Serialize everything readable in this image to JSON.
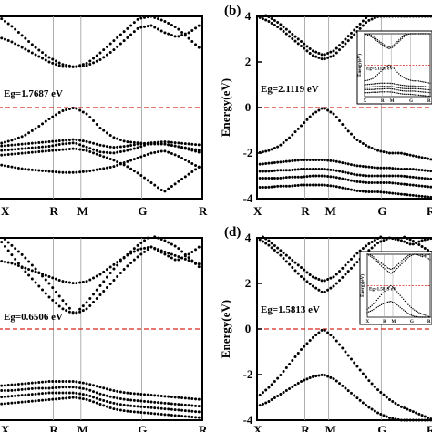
{
  "colors": {
    "frame": "#000000",
    "band": "#000000",
    "fermi": "#d9261c",
    "kpath_line": "#9a9a9a",
    "background": "#ffffff"
  },
  "chart_data": [
    {
      "type": "scatter",
      "panel": "a",
      "panel_label": "",
      "ylabel": "",
      "ylim": [
        -4,
        4
      ],
      "yticks": [],
      "kpoints": [
        "X",
        "R",
        "M",
        "G",
        "R"
      ],
      "kpath_positions": [
        0,
        1,
        1.5,
        2.6,
        3.7
      ],
      "band_gap_label": "Eg=1.7687 eV",
      "fermi_level": 0,
      "inset": false,
      "bands": [
        [
          3.1,
          2.9,
          2.6,
          2.3,
          2.0,
          1.8,
          1.78,
          1.85,
          2.1,
          2.5,
          3.0,
          3.5,
          3.6,
          3.3,
          3.1,
          3.3,
          3.7
        ],
        [
          4.0,
          3.6,
          3.1,
          2.6,
          2.2,
          1.9,
          1.78,
          1.95,
          2.4,
          2.9,
          3.4,
          3.9,
          4.0,
          3.8,
          3.5,
          3.0,
          2.5
        ],
        [
          -1.6,
          -1.45,
          -1.25,
          -0.9,
          -0.5,
          -0.15,
          0.0,
          -0.3,
          -0.9,
          -1.3,
          -1.5,
          -1.55,
          -1.6,
          -1.6,
          -1.7,
          -1.85,
          -2.0
        ],
        [
          -1.7,
          -1.65,
          -1.6,
          -1.55,
          -1.5,
          -1.45,
          -1.4,
          -1.5,
          -1.65,
          -1.75,
          -1.7,
          -1.6,
          -1.55,
          -1.6,
          -1.7,
          -1.8,
          -1.9
        ],
        [
          -1.9,
          -1.85,
          -1.8,
          -1.75,
          -1.7,
          -1.6,
          -1.55,
          -1.75,
          -1.95,
          -2.0,
          -1.9,
          -1.75,
          -1.55,
          -1.5,
          -1.55,
          -1.6,
          -1.65
        ],
        [
          -2.1,
          -2.05,
          -2.0,
          -1.95,
          -1.9,
          -1.85,
          -1.8,
          -1.9,
          -2.1,
          -2.3,
          -2.55,
          -2.9,
          -3.3,
          -3.7,
          -3.3,
          -2.9,
          -2.5
        ],
        [
          -2.5,
          -2.6,
          -2.7,
          -2.75,
          -2.8,
          -2.85,
          -2.85,
          -2.8,
          -2.7,
          -2.6,
          -2.4,
          -2.2,
          -2.0,
          -1.9,
          -2.1,
          -2.4,
          -2.7
        ]
      ]
    },
    {
      "type": "scatter",
      "panel": "b",
      "panel_label": "(b)",
      "ylabel": "Energy(eV)",
      "ylim": [
        -4,
        4
      ],
      "yticks": [
        4,
        2,
        0,
        -2,
        -4
      ],
      "kpoints": [
        "X",
        "R",
        "M",
        "G",
        "R"
      ],
      "kpath_positions": [
        0,
        1,
        1.5,
        2.6,
        3.7
      ],
      "band_gap_label": "Eg=2.1119 eV",
      "fermi_level": 0,
      "inset": true,
      "inset_text": {
        "ylabel": "Energy(eV)",
        "eg": "Eg=2.1119 eV",
        "kpoints": [
          "X",
          "R",
          "M",
          "G",
          "R"
        ]
      },
      "bands": [
        [
          4.0,
          3.8,
          3.5,
          3.1,
          2.7,
          2.3,
          2.11,
          2.3,
          2.8,
          3.3,
          3.8,
          4.0,
          4.0,
          4.0,
          4.0,
          4.0,
          4.0
        ],
        [
          4.2,
          4.0,
          3.7,
          3.3,
          2.9,
          2.5,
          2.3,
          2.5,
          3.0,
          3.5,
          4.0,
          4.2,
          4.2,
          4.2,
          4.2,
          4.2,
          4.2
        ],
        [
          -2.0,
          -1.9,
          -1.7,
          -1.3,
          -0.8,
          -0.3,
          0.0,
          -0.3,
          -0.9,
          -1.4,
          -1.7,
          -1.9,
          -2.0,
          -2.0,
          -2.1,
          -2.2,
          -2.3
        ],
        [
          -2.5,
          -2.45,
          -2.4,
          -2.35,
          -2.3,
          -2.3,
          -2.3,
          -2.35,
          -2.45,
          -2.55,
          -2.6,
          -2.65,
          -2.65,
          -2.7,
          -2.7,
          -2.75,
          -2.8
        ],
        [
          -2.8,
          -2.8,
          -2.75,
          -2.75,
          -2.7,
          -2.7,
          -2.7,
          -2.75,
          -2.85,
          -2.95,
          -3.0,
          -3.0,
          -3.0,
          -3.0,
          -3.05,
          -3.1,
          -3.15
        ],
        [
          -3.1,
          -3.1,
          -3.1,
          -3.05,
          -3.05,
          -3.0,
          -3.0,
          -3.05,
          -3.15,
          -3.25,
          -3.3,
          -3.3,
          -3.3,
          -3.35,
          -3.4,
          -3.45,
          -3.5
        ],
        [
          -3.5,
          -3.5,
          -3.45,
          -3.45,
          -3.4,
          -3.4,
          -3.4,
          -3.45,
          -3.55,
          -3.65,
          -3.7,
          -3.7,
          -3.75,
          -3.8,
          -3.85,
          -3.9,
          -3.95
        ]
      ]
    },
    {
      "type": "scatter",
      "panel": "c",
      "panel_label": "",
      "ylabel": "",
      "ylim": [
        -4,
        4
      ],
      "yticks": [],
      "kpoints": [
        "X",
        "R",
        "M",
        "G",
        "R"
      ],
      "kpath_positions": [
        0,
        1,
        1.5,
        2.6,
        3.7
      ],
      "band_gap_label": "Eg=0.6506 eV",
      "fermi_level": 0,
      "inset": false,
      "bands": [
        [
          4.0,
          3.3,
          2.6,
          2.0,
          1.4,
          0.9,
          0.65,
          0.9,
          1.5,
          2.1,
          2.7,
          3.2,
          3.6,
          3.3,
          3.0,
          3.3,
          3.7
        ],
        [
          4.2,
          3.7,
          3.2,
          2.6,
          2.0,
          1.3,
          0.65,
          1.2,
          1.9,
          2.6,
          3.2,
          3.7,
          4.1,
          3.9,
          3.6,
          3.1,
          2.6
        ],
        [
          3.0,
          2.9,
          2.7,
          2.5,
          2.3,
          2.1,
          2.0,
          2.1,
          2.4,
          2.8,
          3.2,
          3.5,
          3.6,
          3.4,
          3.2,
          3.0,
          2.8
        ],
        [
          -2.5,
          -2.45,
          -2.4,
          -2.35,
          -2.3,
          -2.3,
          -2.3,
          -2.4,
          -2.55,
          -2.7,
          -2.8,
          -2.85,
          -2.9,
          -2.95,
          -3.0,
          -3.05,
          -3.1
        ],
        [
          -2.7,
          -2.7,
          -2.65,
          -2.6,
          -2.6,
          -2.55,
          -2.55,
          -2.65,
          -2.85,
          -3.0,
          -3.1,
          -3.15,
          -3.2,
          -3.25,
          -3.3,
          -3.35,
          -3.4
        ],
        [
          -3.0,
          -2.95,
          -2.9,
          -2.85,
          -2.8,
          -2.8,
          -2.8,
          -2.9,
          -3.1,
          -3.25,
          -3.35,
          -3.4,
          -3.45,
          -3.5,
          -3.55,
          -3.6,
          -3.65
        ],
        [
          -3.3,
          -3.25,
          -3.2,
          -3.15,
          -3.1,
          -3.05,
          -3.0,
          -3.1,
          -3.3,
          -3.5,
          -3.6,
          -3.65,
          -3.7,
          -3.75,
          -3.8,
          -3.85,
          -3.9
        ]
      ]
    },
    {
      "type": "scatter",
      "panel": "d",
      "panel_label": "(d)",
      "ylabel": "Energy(eV)",
      "ylim": [
        -4,
        4
      ],
      "yticks": [
        4,
        2,
        0,
        -2,
        -4
      ],
      "kpoints": [
        "X",
        "R",
        "M",
        "G",
        "R"
      ],
      "kpath_positions": [
        0,
        1,
        1.5,
        2.6,
        3.7
      ],
      "band_gap_label": "Eg=1.5813 eV",
      "fermi_level": 0,
      "inset": true,
      "inset_text": {
        "ylabel": "Energy(eV)",
        "eg": "Eg=1.5813 eV",
        "kpoints": [
          "X",
          "R",
          "M",
          "G",
          "R"
        ]
      },
      "bands": [
        [
          4.0,
          3.7,
          3.3,
          2.8,
          2.3,
          1.9,
          1.58,
          1.9,
          2.4,
          2.9,
          3.4,
          3.8,
          4.0,
          3.9,
          3.7,
          3.9,
          4.0
        ],
        [
          4.2,
          3.9,
          3.5,
          3.1,
          2.7,
          2.3,
          2.1,
          2.3,
          2.8,
          3.3,
          3.7,
          4.0,
          4.2,
          4.1,
          3.9,
          3.6,
          3.3
        ],
        [
          -3.0,
          -2.6,
          -2.1,
          -1.5,
          -0.9,
          -0.4,
          0.0,
          -0.4,
          -1.0,
          -1.6,
          -2.2,
          -2.7,
          -3.1,
          -3.4,
          -3.6,
          -3.8,
          -4.0
        ],
        [
          -3.4,
          -3.2,
          -2.9,
          -2.6,
          -2.3,
          -2.1,
          -2.0,
          -2.2,
          -2.6,
          -3.0,
          -3.4,
          -3.7,
          -3.9,
          -4.0,
          -4.0,
          -4.0,
          -4.0
        ]
      ]
    }
  ]
}
